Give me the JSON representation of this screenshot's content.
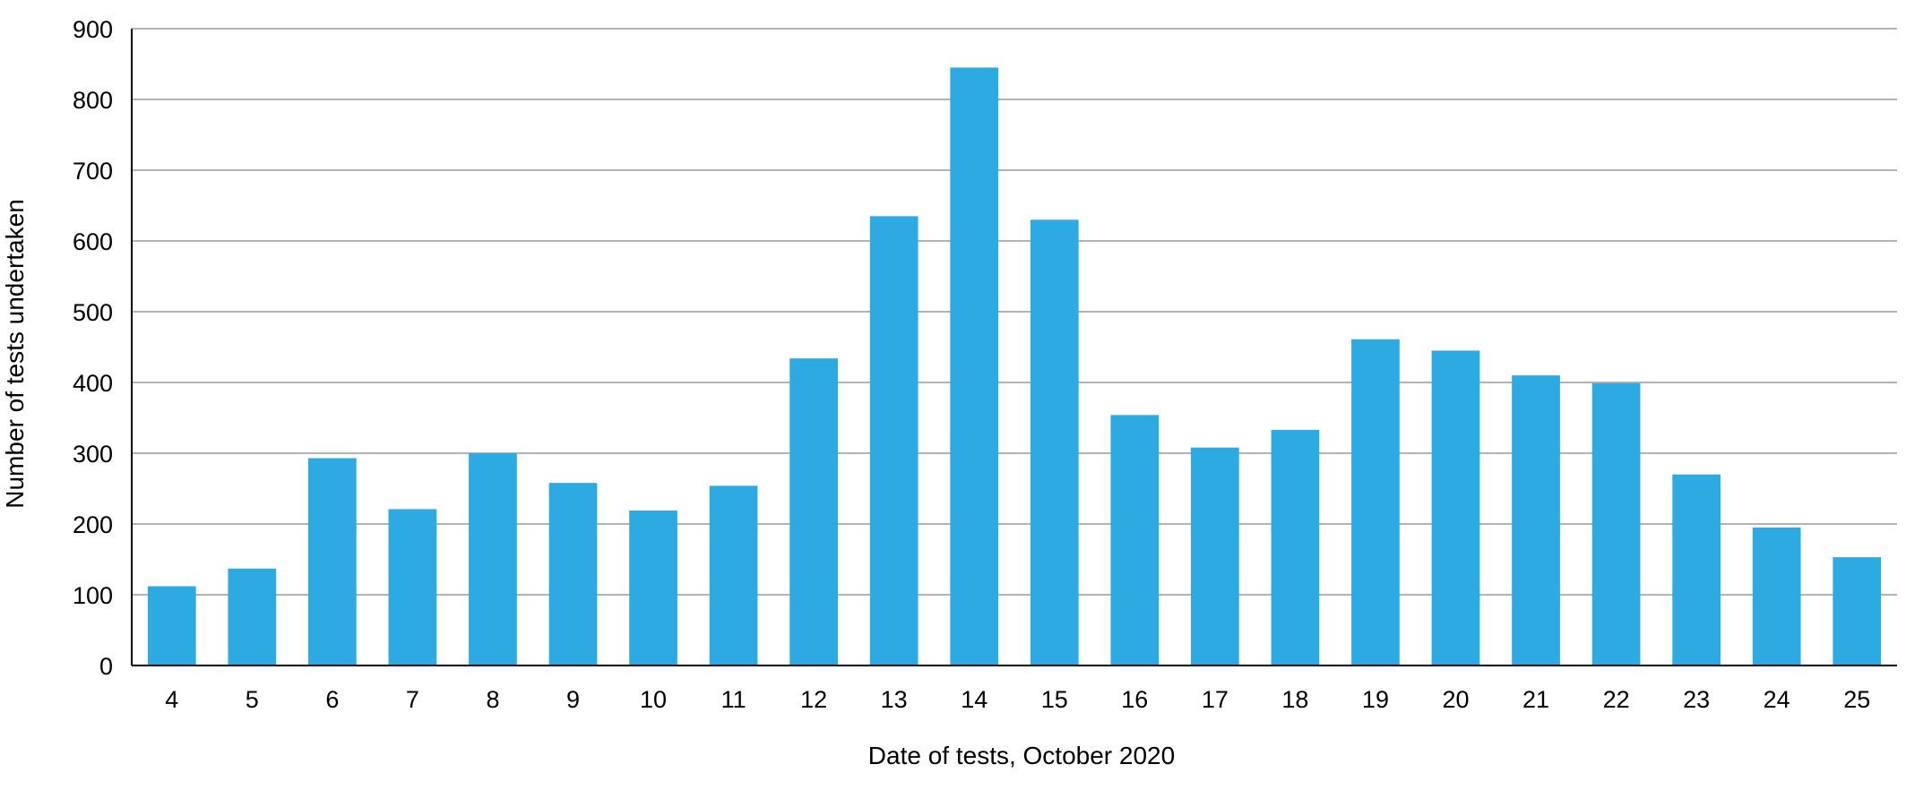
{
  "chart_data": {
    "type": "bar",
    "xlabel": "Date of tests, October 2020",
    "ylabel": "Number of tests undertaken",
    "categories": [
      "4",
      "5",
      "6",
      "7",
      "8",
      "9",
      "10",
      "11",
      "12",
      "13",
      "14",
      "15",
      "16",
      "17",
      "18",
      "19",
      "20",
      "21",
      "22",
      "23",
      "24",
      "25"
    ],
    "values": [
      112,
      137,
      293,
      221,
      300,
      258,
      219,
      254,
      434,
      635,
      845,
      630,
      354,
      308,
      333,
      461,
      445,
      410,
      399,
      270,
      195,
      153
    ],
    "ylim": [
      0,
      900
    ],
    "yticks": [
      0,
      100,
      200,
      300,
      400,
      500,
      600,
      700,
      800,
      900
    ],
    "grid": true,
    "legend": "none",
    "bar_color": "#2eaae2",
    "grid_color": "#b3b3b3",
    "axis_color": "#000000"
  }
}
